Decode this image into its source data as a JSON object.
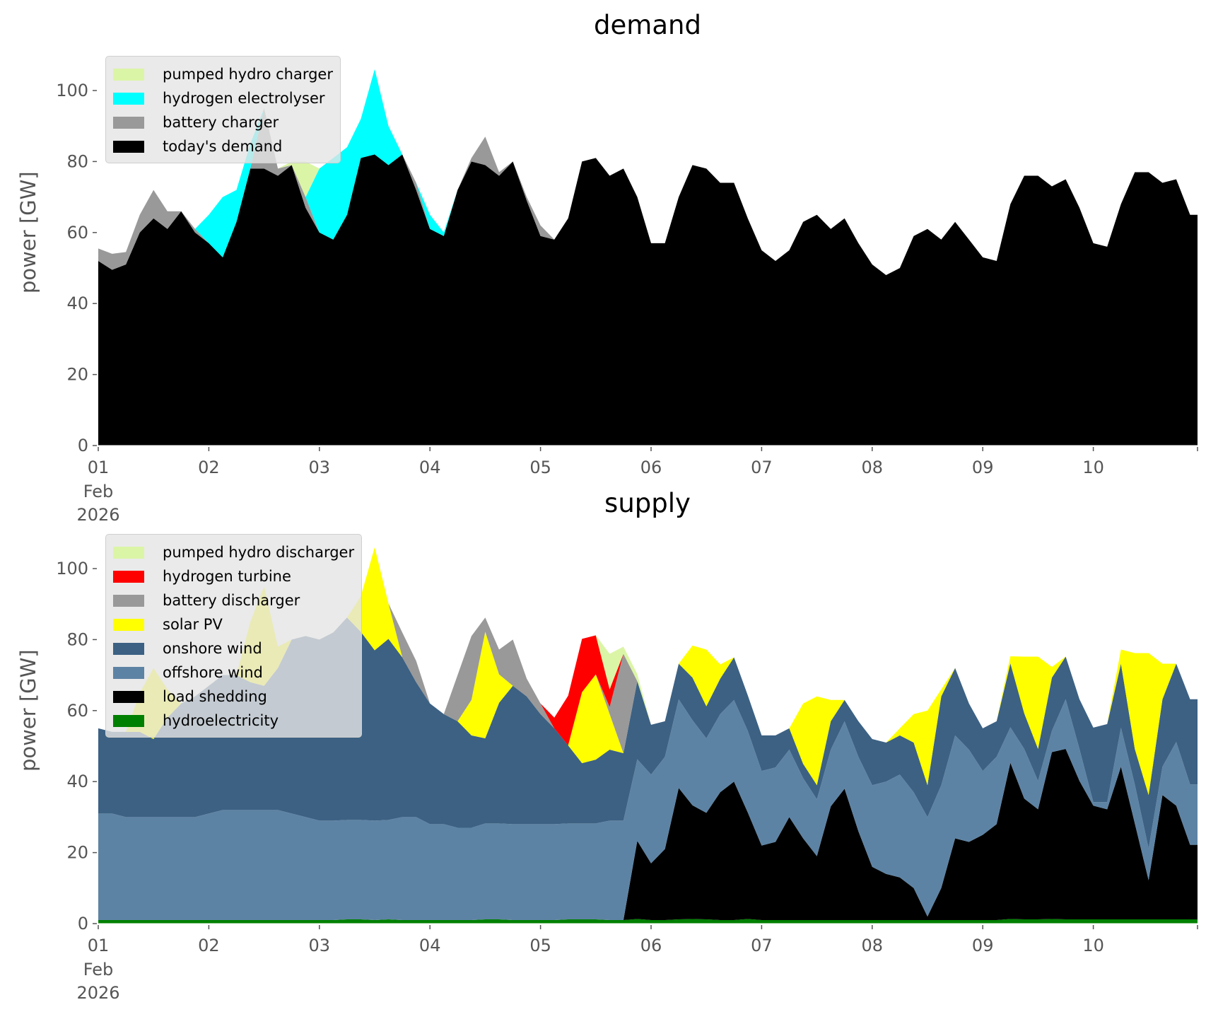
{
  "chart_data": [
    {
      "type": "area",
      "stacked": true,
      "title": "demand",
      "ylabel": "power [GW]",
      "xlabel": "",
      "ylim": [
        0,
        110
      ],
      "y_ticks": [
        0,
        20,
        40,
        60,
        80,
        100
      ],
      "x_tick_labels": [
        "01",
        "02",
        "03",
        "04",
        "05",
        "06",
        "07",
        "08",
        "09",
        "10"
      ],
      "x_tick_sublabel": [
        "Feb",
        "2026"
      ],
      "time_step_hours": 3,
      "legend_position": "top-left",
      "grid": false,
      "series": [
        {
          "name": "today's demand",
          "color": "#000000",
          "values": [
            52,
            49.5,
            51,
            60,
            64,
            61,
            66,
            60,
            57,
            53,
            63,
            78,
            78,
            76,
            79,
            67,
            60,
            58,
            65,
            81,
            82,
            79,
            82,
            72,
            61,
            59,
            72,
            80,
            79,
            76,
            80,
            69,
            59,
            58,
            64,
            80,
            81,
            76,
            78,
            70,
            57,
            57,
            70,
            79,
            78,
            74,
            74,
            64,
            55,
            52,
            55,
            63,
            65,
            61,
            64,
            57,
            51,
            48,
            50,
            59,
            61,
            58,
            63,
            58,
            53,
            52,
            68,
            76,
            76,
            73,
            75,
            67,
            57,
            56,
            68,
            77,
            77,
            74,
            75,
            65
          ]
        },
        {
          "name": "battery charger",
          "color": "#999999",
          "values": [
            3.5,
            4.5,
            3.5,
            5,
            8,
            5,
            0,
            1,
            0,
            0,
            0,
            0,
            17,
            2,
            0,
            3,
            0,
            0,
            0,
            0,
            0,
            0,
            0,
            2,
            0,
            0,
            0,
            1,
            8,
            1,
            0,
            1,
            3,
            0,
            0,
            0,
            0,
            0,
            0,
            0,
            0,
            0,
            0,
            0,
            0,
            0,
            0,
            0,
            0,
            0,
            0,
            0,
            0,
            0,
            0,
            0,
            0,
            0,
            0,
            0,
            0,
            0,
            0,
            0,
            0,
            0,
            0,
            0,
            0,
            0,
            0,
            0,
            0,
            0,
            0,
            0,
            0,
            0,
            0,
            0
          ]
        },
        {
          "name": "hydrogen electrolyser",
          "color": "#00ffff",
          "values": [
            0,
            0,
            0,
            0,
            0,
            0,
            0,
            0,
            8,
            17,
            9,
            7,
            0,
            0,
            0,
            0,
            18,
            23,
            19,
            11,
            24,
            11,
            0,
            0,
            4,
            1,
            0,
            0,
            0,
            0,
            0,
            0,
            0,
            0,
            0,
            0,
            0,
            0,
            0,
            0,
            0,
            0,
            0,
            0,
            0,
            0,
            0,
            0,
            0,
            0,
            0,
            0,
            0,
            0,
            0,
            0,
            0,
            0,
            0,
            0,
            0,
            0,
            0,
            0,
            0,
            0,
            0,
            0,
            0,
            0,
            0,
            0,
            0,
            0,
            0,
            0,
            0,
            0,
            0,
            0
          ]
        },
        {
          "name": "pumped hydro charger",
          "color": "#dbf5a6",
          "values": [
            0,
            0,
            0,
            0,
            0,
            0,
            0,
            0,
            0,
            0,
            0,
            0,
            0,
            0,
            1,
            10,
            0,
            0,
            0,
            0,
            0,
            0,
            0,
            0,
            0,
            0,
            0,
            0,
            0,
            0,
            0,
            0,
            0,
            0,
            0,
            0,
            0,
            0,
            0,
            0,
            0,
            0,
            0,
            0,
            0,
            0,
            0,
            0,
            0,
            0,
            0,
            0,
            0,
            0,
            0,
            0,
            0,
            0,
            0,
            0,
            0,
            0,
            0,
            0,
            0,
            0,
            0,
            0,
            0,
            0,
            0,
            0,
            0,
            0,
            0,
            0,
            0,
            0,
            0,
            0
          ]
        }
      ]
    },
    {
      "type": "area",
      "stacked": true,
      "title": "supply",
      "ylabel": "power [GW]",
      "xlabel": "",
      "ylim": [
        0,
        110
      ],
      "y_ticks": [
        0,
        20,
        40,
        60,
        80,
        100
      ],
      "x_tick_labels": [
        "01",
        "02",
        "03",
        "04",
        "05",
        "06",
        "07",
        "08",
        "09",
        "10"
      ],
      "x_tick_sublabel": [
        "Feb",
        "2026"
      ],
      "time_step_hours": 3,
      "legend_position": "top-left",
      "grid": false,
      "series": [
        {
          "name": "hydroelectricity",
          "color": "#008000",
          "values": [
            1,
            1,
            1,
            1,
            1,
            1,
            1,
            1,
            1,
            1,
            1,
            1,
            1,
            1,
            1,
            1,
            1,
            1,
            1.2,
            1.2,
            1,
            1.2,
            1,
            1,
            1,
            1,
            1,
            1,
            1.2,
            1.2,
            1,
            1,
            1,
            1,
            1.2,
            1.2,
            1.2,
            1,
            1,
            1.3,
            1,
            1,
            1.2,
            1.3,
            1.2,
            1,
            1,
            1.3,
            1,
            1,
            1,
            1,
            1,
            1,
            1,
            1,
            1,
            1,
            1,
            1,
            1,
            1,
            1,
            1,
            1,
            1,
            1.3,
            1.2,
            1.2,
            1.3,
            1.2,
            1.2,
            1.2,
            1.2,
            1.2,
            1.2,
            1.2,
            1.2,
            1.2,
            1.2
          ]
        },
        {
          "name": "load shedding",
          "color": "#000000",
          "values": [
            0,
            0,
            0,
            0,
            0,
            0,
            0,
            0,
            0,
            0,
            0,
            0,
            0,
            0,
            0,
            0,
            0,
            0,
            0,
            0,
            0,
            0,
            0,
            0,
            0,
            0,
            0,
            0,
            0,
            0,
            0,
            0,
            0,
            0,
            0,
            0,
            0,
            0,
            0,
            22,
            16,
            20,
            37,
            32,
            30,
            36,
            39,
            30,
            21,
            22,
            29,
            23,
            18,
            32,
            37,
            25,
            15,
            13,
            12,
            9,
            1,
            9,
            23,
            22,
            24,
            27,
            44,
            34,
            31,
            47,
            48,
            39,
            32,
            31,
            43,
            27,
            11,
            35,
            32,
            21
          ]
        },
        {
          "name": "offshore wind",
          "color": "#5d83a4",
          "values": [
            30,
            30,
            29,
            29,
            29,
            29,
            29,
            29,
            30,
            31,
            31,
            31,
            31,
            31,
            30,
            29,
            28,
            28,
            28,
            28,
            28,
            28,
            29,
            29,
            27,
            27,
            26,
            26,
            27,
            27,
            27,
            27,
            27,
            27,
            27,
            27,
            27,
            28,
            28,
            23,
            25,
            26,
            25,
            24,
            21,
            22,
            23,
            23,
            21,
            21,
            19,
            17,
            16,
            16,
            19,
            21,
            23,
            26,
            29,
            27,
            28,
            29,
            29,
            26,
            18,
            19,
            10,
            14,
            8,
            6,
            14,
            9,
            1,
            2,
            11,
            11,
            9,
            8,
            18,
            17
          ]
        },
        {
          "name": "onshore wind",
          "color": "#3c6183",
          "values": [
            24,
            23,
            24,
            24,
            22,
            28,
            32,
            34,
            36,
            38,
            38,
            36,
            35,
            40,
            49,
            51,
            51,
            53,
            57,
            53,
            48,
            51,
            45,
            38,
            34,
            31,
            30,
            26,
            24,
            34,
            39,
            36,
            31,
            27,
            22,
            17,
            18,
            20,
            19,
            22,
            14,
            10,
            10,
            12,
            9,
            10,
            12,
            10,
            10,
            9,
            6,
            4,
            4,
            8,
            6,
            10,
            13,
            11,
            11,
            14,
            9,
            25,
            19,
            13,
            12,
            10,
            18,
            10,
            9,
            15,
            12,
            14,
            21,
            22,
            18,
            10,
            15,
            19,
            22,
            24
          ]
        },
        {
          "name": "solar PV",
          "color": "#ffff00",
          "values": [
            0,
            0,
            0,
            11,
            20,
            8,
            0,
            0,
            0,
            0,
            0,
            17,
            28,
            6,
            0,
            0,
            0,
            0,
            0,
            10,
            29,
            10,
            0,
            0,
            0,
            0,
            0,
            10,
            30,
            8,
            0,
            0,
            0,
            0,
            0,
            20,
            24,
            10,
            0,
            0,
            0,
            0,
            0,
            9,
            16,
            4,
            0,
            0,
            0,
            0,
            0,
            17,
            25,
            6,
            0,
            0,
            0,
            0,
            2,
            8,
            21,
            2,
            0,
            0,
            0,
            0,
            2,
            16,
            26,
            3,
            0,
            0,
            0,
            0,
            4,
            27,
            40,
            10,
            0,
            0
          ]
        },
        {
          "name": "battery discharger",
          "color": "#999999",
          "values": [
            0,
            0,
            0,
            0,
            0,
            0,
            0,
            0,
            0,
            0,
            0,
            0,
            0,
            0,
            0,
            0,
            0,
            0,
            0,
            0,
            0,
            0,
            7,
            6,
            0,
            0,
            13,
            18,
            4,
            7,
            13,
            5,
            3,
            0,
            0,
            0,
            0,
            2,
            28,
            0,
            0,
            0,
            0,
            0,
            0,
            0,
            0,
            0,
            0,
            0,
            0,
            0,
            0,
            0,
            0,
            0,
            0,
            0,
            0,
            0,
            0,
            0,
            0,
            0,
            0,
            0,
            0,
            0,
            0,
            0,
            0,
            0,
            0,
            0,
            0,
            0,
            0,
            0,
            0,
            0
          ]
        },
        {
          "name": "hydrogen turbine",
          "color": "#ff0000",
          "values": [
            0,
            0,
            0,
            0,
            0,
            0,
            0,
            0,
            0,
            0,
            0,
            0,
            0,
            0,
            0,
            0,
            0,
            0,
            0,
            0,
            0,
            0,
            0,
            0,
            0,
            0,
            0,
            0,
            0,
            0,
            0,
            0,
            0,
            3,
            14,
            15,
            11,
            5,
            0,
            0,
            0,
            0,
            0,
            0,
            0,
            0,
            0,
            0,
            0,
            0,
            0,
            0,
            0,
            0,
            0,
            0,
            0,
            0,
            0,
            0,
            0,
            0,
            0,
            0,
            0,
            0,
            0,
            0,
            0,
            0,
            0,
            0,
            0,
            0,
            0,
            0,
            0,
            0,
            0,
            0
          ]
        },
        {
          "name": "pumped hydro discharger",
          "color": "#dbf5a6",
          "values": [
            0,
            0,
            0,
            0,
            0,
            0,
            0,
            0,
            0,
            0,
            0,
            0,
            0,
            0,
            0,
            0,
            0,
            0,
            0,
            0,
            0,
            0,
            0,
            0,
            0,
            0,
            0,
            0,
            0,
            0,
            0,
            0,
            0,
            0,
            0,
            0,
            0,
            10,
            2,
            2,
            0,
            0,
            0,
            0,
            0,
            0,
            0,
            0,
            0,
            0,
            0,
            0,
            0,
            0,
            0,
            0,
            0,
            0,
            0,
            0,
            0,
            0,
            0,
            0,
            0,
            0,
            0,
            0,
            0,
            0,
            0,
            0,
            0,
            0,
            0,
            0,
            0,
            0,
            0,
            0
          ]
        }
      ]
    }
  ]
}
